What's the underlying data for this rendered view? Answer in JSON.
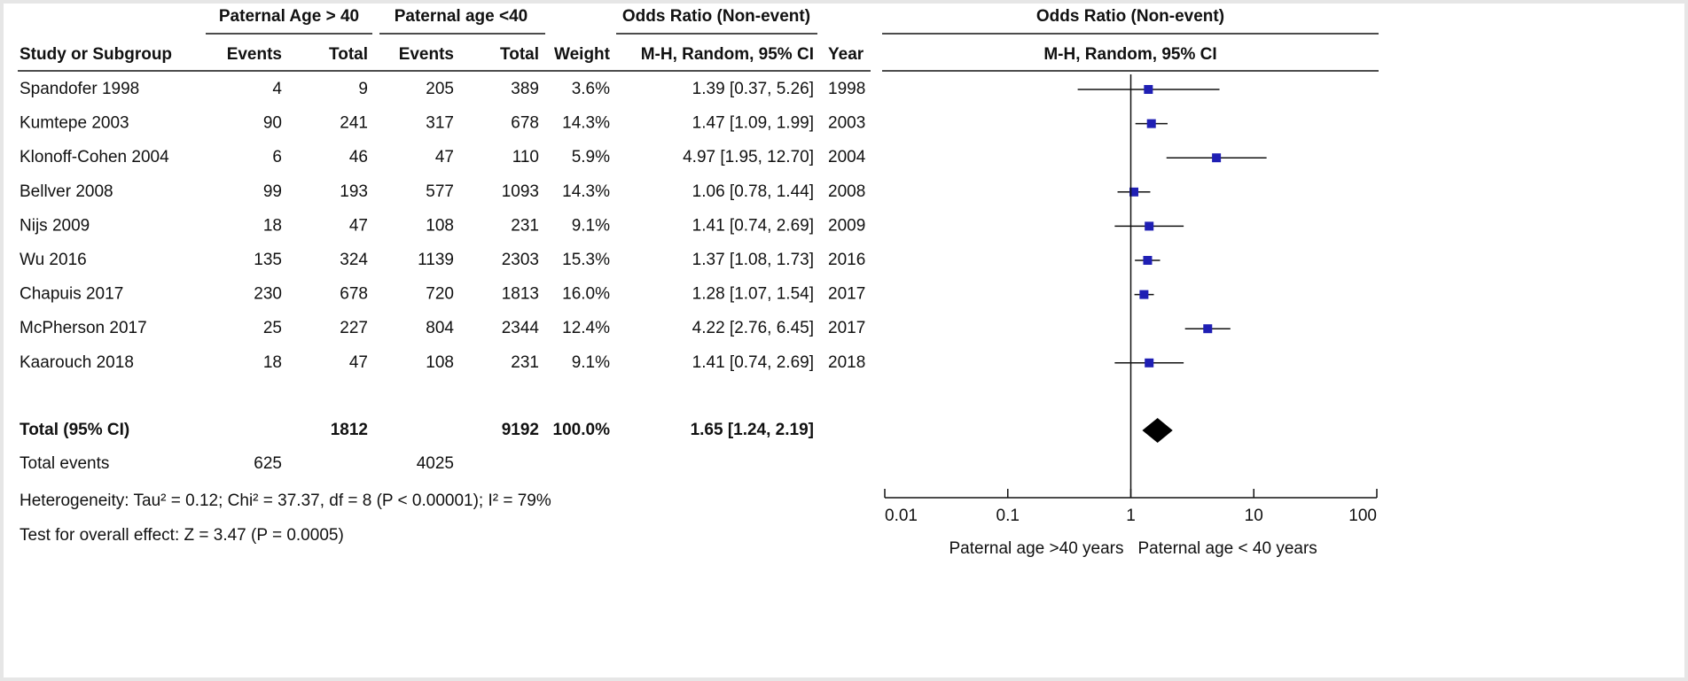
{
  "chart_data": {
    "type": "forest",
    "group_headers": [
      "Paternal Age > 40",
      "Paternal age <40",
      "Odds Ratio (Non-event)",
      "Odds Ratio (Non-event)"
    ],
    "columns": [
      "Study or Subgroup",
      "Events",
      "Total",
      "Events",
      "Total",
      "Weight",
      "M-H, Random, 95% CI",
      "Year",
      "M-H, Random, 95% CI"
    ],
    "rows": [
      {
        "study": "Spandofer 1998",
        "events1": 4,
        "total1": 9,
        "events2": 205,
        "total2": 389,
        "weight": "3.6%",
        "or": 1.39,
        "ci_low": 0.37,
        "ci_high": 5.26,
        "or_label": "1.39 [0.37, 5.26]",
        "year": 1998
      },
      {
        "study": "Kumtepe 2003",
        "events1": 90,
        "total1": 241,
        "events2": 317,
        "total2": 678,
        "weight": "14.3%",
        "or": 1.47,
        "ci_low": 1.09,
        "ci_high": 1.99,
        "or_label": "1.47 [1.09, 1.99]",
        "year": 2003
      },
      {
        "study": "Klonoff-Cohen 2004",
        "events1": 6,
        "total1": 46,
        "events2": 47,
        "total2": 110,
        "weight": "5.9%",
        "or": 4.97,
        "ci_low": 1.95,
        "ci_high": 12.7,
        "or_label": "4.97 [1.95, 12.70]",
        "year": 2004
      },
      {
        "study": "Bellver 2008",
        "events1": 99,
        "total1": 193,
        "events2": 577,
        "total2": 1093,
        "weight": "14.3%",
        "or": 1.06,
        "ci_low": 0.78,
        "ci_high": 1.44,
        "or_label": "1.06 [0.78, 1.44]",
        "year": 2008
      },
      {
        "study": "Nijs 2009",
        "events1": 18,
        "total1": 47,
        "events2": 108,
        "total2": 231,
        "weight": "9.1%",
        "or": 1.41,
        "ci_low": 0.74,
        "ci_high": 2.69,
        "or_label": "1.41 [0.74, 2.69]",
        "year": 2009
      },
      {
        "study": "Wu 2016",
        "events1": 135,
        "total1": 324,
        "events2": 1139,
        "total2": 2303,
        "weight": "15.3%",
        "or": 1.37,
        "ci_low": 1.08,
        "ci_high": 1.73,
        "or_label": "1.37 [1.08, 1.73]",
        "year": 2016
      },
      {
        "study": "Chapuis 2017",
        "events1": 230,
        "total1": 678,
        "events2": 720,
        "total2": 1813,
        "weight": "16.0%",
        "or": 1.28,
        "ci_low": 1.07,
        "ci_high": 1.54,
        "or_label": "1.28 [1.07, 1.54]",
        "year": 2017
      },
      {
        "study": "McPherson 2017",
        "events1": 25,
        "total1": 227,
        "events2": 804,
        "total2": 2344,
        "weight": "12.4%",
        "or": 4.22,
        "ci_low": 2.76,
        "ci_high": 6.45,
        "or_label": "4.22 [2.76, 6.45]",
        "year": 2017
      },
      {
        "study": "Kaarouch 2018",
        "events1": 18,
        "total1": 47,
        "events2": 108,
        "total2": 231,
        "weight": "9.1%",
        "or": 1.41,
        "ci_low": 0.74,
        "ci_high": 2.69,
        "or_label": "1.41 [0.74, 2.69]",
        "year": 2018
      }
    ],
    "total": {
      "study": "Total (95% CI)",
      "total1": 1812,
      "total2": 9192,
      "weight": "100.0%",
      "or": 1.65,
      "ci_low": 1.24,
      "ci_high": 2.19,
      "or_label": "1.65 [1.24, 2.19]"
    },
    "total_events": {
      "label": "Total events",
      "events1": 625,
      "events2": 4025
    },
    "heterogeneity": "Heterogeneity: Tau² = 0.12; Chi² = 37.37, df = 8 (P < 0.00001); I² = 79%",
    "overall_effect": "Test for overall effect: Z = 3.47 (P = 0.0005)",
    "xlim": [
      0.01,
      100
    ],
    "xticks": [
      0.01,
      0.1,
      1,
      10,
      100
    ],
    "log_x": true,
    "favours": [
      "Paternal age >40 years",
      "Paternal age < 40 years"
    ],
    "color": "#1f1fb4"
  }
}
